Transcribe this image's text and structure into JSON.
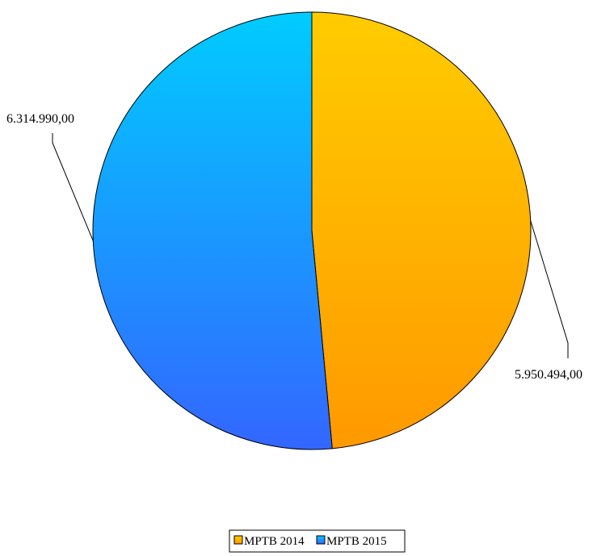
{
  "chart_data": {
    "type": "pie",
    "title": "",
    "series": [
      {
        "name": "MPTB 2014",
        "value": 5950494.0,
        "label": "5.950.494,00",
        "color_light": "#ffcc00",
        "color_dark": "#ff9900"
      },
      {
        "name": "MPTB 2015",
        "value": 6314990.0,
        "label": "6.314.990,00",
        "color_light": "#00ccff",
        "color_dark": "#3366ff"
      }
    ],
    "start_angle_deg": 0,
    "direction": "clockwise",
    "legend": {
      "position": "bottom-center",
      "entries": [
        "MPTB 2014",
        "MPTB 2015"
      ]
    }
  }
}
